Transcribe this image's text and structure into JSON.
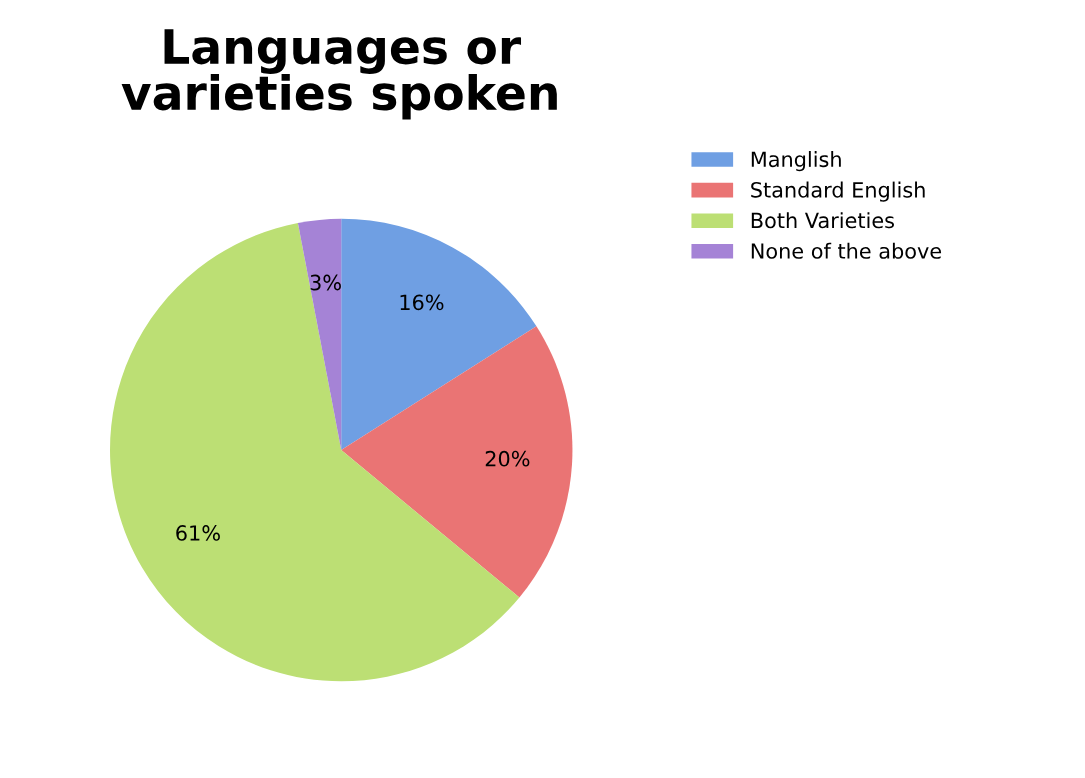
{
  "chart_data": {
    "type": "pie",
    "title": "Languages or\nvarieties spoken",
    "categories": [
      "Manglish",
      "Standard English",
      "Both Varieties",
      "None of the above"
    ],
    "values": [
      16,
      20,
      61,
      3
    ],
    "value_labels": [
      "16%",
      "20%",
      "61%",
      "3%"
    ],
    "colors": [
      "#6f9fe3",
      "#ea7474",
      "#bcdf74",
      "#a583d6"
    ],
    "legend": "top right"
  }
}
